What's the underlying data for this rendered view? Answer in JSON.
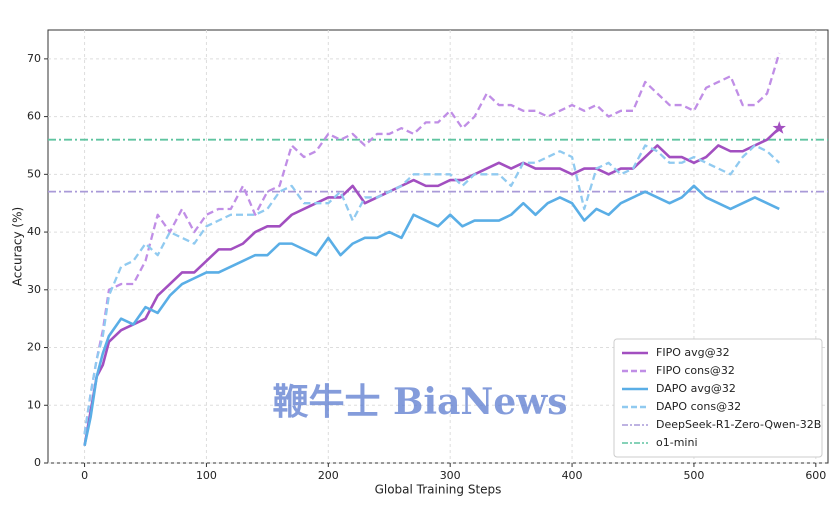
{
  "chart_data": {
    "type": "line",
    "xlabel": "Global Training Steps",
    "ylabel": "Accuracy (%)",
    "watermark": "鞭牛士 BiaNews",
    "xlim": [
      -30,
      610
    ],
    "ylim": [
      0,
      75
    ],
    "xticks": [
      0,
      100,
      200,
      300,
      400,
      500,
      600
    ],
    "yticks": [
      0,
      10,
      20,
      30,
      40,
      50,
      60,
      70
    ],
    "grid": true,
    "legend": "lower right",
    "x": [
      0,
      5,
      10,
      15,
      20,
      30,
      40,
      50,
      60,
      70,
      80,
      90,
      100,
      110,
      120,
      130,
      140,
      150,
      160,
      170,
      180,
      190,
      200,
      210,
      220,
      230,
      240,
      250,
      260,
      270,
      280,
      290,
      300,
      310,
      320,
      330,
      340,
      350,
      360,
      370,
      380,
      390,
      400,
      410,
      420,
      430,
      440,
      450,
      460,
      470,
      480,
      490,
      500,
      510,
      520,
      530,
      540,
      550,
      560,
      570
    ],
    "series": [
      {
        "name": "FIPO avg@32",
        "color": "#a24fc0",
        "style": "solid",
        "end_marker": "star",
        "values": [
          3,
          9,
          15,
          17,
          21,
          23,
          24,
          25,
          29,
          31,
          33,
          33,
          35,
          37,
          37,
          38,
          40,
          41,
          41,
          43,
          44,
          45,
          46,
          46,
          48,
          45,
          46,
          47,
          48,
          49,
          48,
          48,
          49,
          49,
          50,
          51,
          52,
          51,
          52,
          51,
          51,
          51,
          50,
          51,
          51,
          50,
          51,
          51,
          53,
          55,
          53,
          53,
          52,
          53,
          55,
          54,
          54,
          55,
          56,
          58
        ]
      },
      {
        "name": "FIPO cons@32",
        "color": "#c08ee6",
        "style": "dashed",
        "values": [
          5,
          12,
          18,
          23,
          30,
          31,
          31,
          35,
          43,
          40,
          44,
          40,
          43,
          44,
          44,
          48,
          43,
          47,
          48,
          55,
          53,
          54,
          57,
          56,
          57,
          55,
          57,
          57,
          58,
          57,
          59,
          59,
          61,
          58,
          60,
          64,
          62,
          62,
          61,
          61,
          60,
          61,
          62,
          61,
          62,
          60,
          61,
          61,
          66,
          64,
          62,
          62,
          61,
          65,
          66,
          67,
          62,
          62,
          64,
          71
        ]
      },
      {
        "name": "DAPO avg@32",
        "color": "#5aaee6",
        "style": "solid",
        "values": [
          3,
          8,
          15,
          19,
          22,
          25,
          24,
          27,
          26,
          29,
          31,
          32,
          33,
          33,
          34,
          35,
          36,
          36,
          38,
          38,
          37,
          36,
          39,
          36,
          38,
          39,
          39,
          40,
          39,
          43,
          42,
          41,
          43,
          41,
          42,
          42,
          42,
          43,
          45,
          43,
          45,
          46,
          45,
          42,
          44,
          43,
          45,
          46,
          47,
          46,
          45,
          46,
          48,
          46,
          45,
          44,
          45,
          46,
          45,
          44
        ]
      },
      {
        "name": "DAPO cons@32",
        "color": "#90caf0",
        "style": "dashed",
        "values": [
          5,
          12,
          18,
          22,
          29,
          34,
          35,
          38,
          36,
          40,
          39,
          38,
          41,
          42,
          43,
          43,
          43,
          44,
          47,
          48,
          45,
          45,
          45,
          47,
          42,
          46,
          46,
          47,
          48,
          50,
          50,
          50,
          50,
          48,
          50,
          50,
          50,
          48,
          52,
          52,
          53,
          54,
          53,
          44,
          51,
          52,
          50,
          51,
          55,
          54,
          52,
          52,
          53,
          52,
          51,
          50,
          53,
          55,
          54,
          52
        ]
      }
    ],
    "reference_lines": [
      {
        "name": "DeepSeek-R1-Zero-Qwen-32B",
        "value": 47,
        "color": "#a99ad8",
        "style": "dashdot"
      },
      {
        "name": "o1-mini",
        "value": 56,
        "color": "#5fc4a0",
        "style": "dashdot"
      }
    ]
  }
}
